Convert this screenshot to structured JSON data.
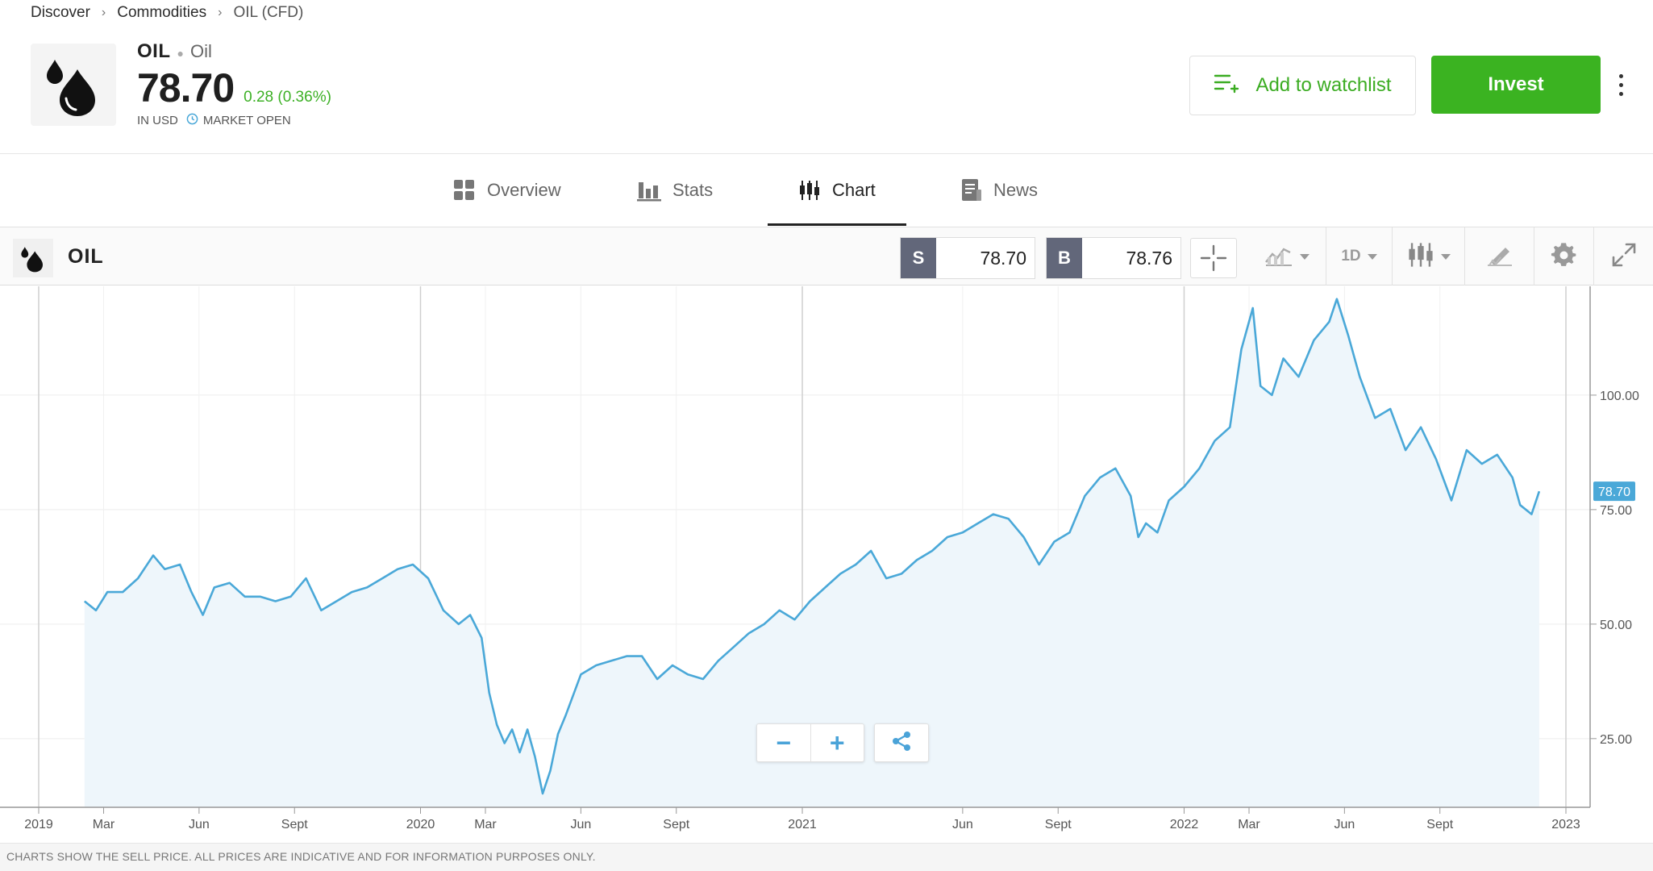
{
  "breadcrumb": {
    "items": [
      "Discover",
      "Commodities",
      "OIL (CFD)"
    ]
  },
  "header": {
    "symbol": "OIL",
    "name": "Oil",
    "price": "78.70",
    "change": "0.28 (0.36%)",
    "currency_note": "IN USD",
    "market_status": "MARKET OPEN",
    "watchlist_label": "Add to watchlist",
    "invest_label": "Invest"
  },
  "tabs": [
    {
      "label": "Overview",
      "icon": "grid-icon"
    },
    {
      "label": "Stats",
      "icon": "bar-chart-icon"
    },
    {
      "label": "Chart",
      "icon": "candlestick-icon",
      "active": true
    },
    {
      "label": "News",
      "icon": "document-icon"
    }
  ],
  "chart_toolbar": {
    "symbol": "OIL",
    "sell_tag": "S",
    "sell_value": "78.70",
    "buy_tag": "B",
    "buy_value": "78.76",
    "period": "1D"
  },
  "colors": {
    "accent_green": "#3bb321",
    "line_blue": "#4aa8d8",
    "fill_blue": "#eef6fb",
    "label_bg": "#4aa8d8"
  },
  "chart_data": {
    "type": "area",
    "title": "",
    "xlabel": "",
    "ylabel": "",
    "ylim": [
      10,
      122
    ],
    "xlim": [
      2019.0,
      2023.1
    ],
    "yticks": [
      100,
      75,
      50,
      25
    ],
    "ytick_labels": [
      "100.00",
      "75.00",
      "50.00",
      "25.00"
    ],
    "xticks": [
      2019.0,
      2019.17,
      2019.42,
      2019.67,
      2020.0,
      2020.17,
      2020.42,
      2020.67,
      2021.0,
      2021.42,
      2021.67,
      2022.0,
      2022.17,
      2022.42,
      2022.67,
      2023.0
    ],
    "xtick_labels": [
      "2019",
      "Mar",
      "Jun",
      "Sept",
      "2020",
      "Mar",
      "Jun",
      "Sept",
      "2021",
      "Jun",
      "Sept",
      "2022",
      "Mar",
      "Jun",
      "Sept",
      "2023"
    ],
    "last_value_label": "78.70",
    "footnote": "CHARTS SHOW THE SELL PRICE. ALL PRICES ARE INDICATIVE AND FOR INFORMATION PURPOSES ONLY.",
    "series": [
      {
        "name": "OIL",
        "x": [
          2019.12,
          2019.15,
          2019.18,
          2019.22,
          2019.26,
          2019.3,
          2019.33,
          2019.37,
          2019.4,
          2019.43,
          2019.46,
          2019.5,
          2019.54,
          2019.58,
          2019.62,
          2019.66,
          2019.7,
          2019.74,
          2019.78,
          2019.82,
          2019.86,
          2019.9,
          2019.94,
          2019.98,
          2020.02,
          2020.06,
          2020.1,
          2020.13,
          2020.16,
          2020.18,
          2020.2,
          2020.22,
          2020.24,
          2020.26,
          2020.28,
          2020.3,
          2020.32,
          2020.34,
          2020.36,
          2020.38,
          2020.42,
          2020.46,
          2020.5,
          2020.54,
          2020.58,
          2020.62,
          2020.66,
          2020.7,
          2020.74,
          2020.78,
          2020.82,
          2020.86,
          2020.9,
          2020.94,
          2020.98,
          2021.02,
          2021.06,
          2021.1,
          2021.14,
          2021.18,
          2021.22,
          2021.26,
          2021.3,
          2021.34,
          2021.38,
          2021.42,
          2021.46,
          2021.5,
          2021.54,
          2021.58,
          2021.62,
          2021.66,
          2021.7,
          2021.74,
          2021.78,
          2021.82,
          2021.86,
          2021.88,
          2021.9,
          2021.93,
          2021.96,
          2022.0,
          2022.04,
          2022.08,
          2022.12,
          2022.15,
          2022.18,
          2022.2,
          2022.23,
          2022.26,
          2022.3,
          2022.34,
          2022.38,
          2022.4,
          2022.43,
          2022.46,
          2022.5,
          2022.54,
          2022.58,
          2022.62,
          2022.66,
          2022.7,
          2022.74,
          2022.78,
          2022.82,
          2022.86,
          2022.88,
          2022.91,
          2022.93
        ],
        "values": [
          55,
          53,
          57,
          57,
          60,
          65,
          62,
          63,
          57,
          52,
          58,
          59,
          56,
          56,
          55,
          56,
          60,
          53,
          55,
          57,
          58,
          60,
          62,
          63,
          60,
          53,
          50,
          52,
          47,
          35,
          28,
          24,
          27,
          22,
          27,
          21,
          13,
          18,
          26,
          30,
          39,
          41,
          42,
          43,
          43,
          38,
          41,
          39,
          38,
          42,
          45,
          48,
          50,
          53,
          51,
          55,
          58,
          61,
          63,
          66,
          60,
          61,
          64,
          66,
          69,
          70,
          72,
          74,
          73,
          69,
          63,
          68,
          70,
          78,
          82,
          84,
          78,
          69,
          72,
          70,
          77,
          80,
          84,
          90,
          93,
          110,
          119,
          102,
          100,
          108,
          104,
          112,
          116,
          121,
          113,
          104,
          95,
          97,
          88,
          93,
          86,
          77,
          88,
          85,
          87,
          82,
          76,
          74,
          79
        ]
      }
    ]
  }
}
